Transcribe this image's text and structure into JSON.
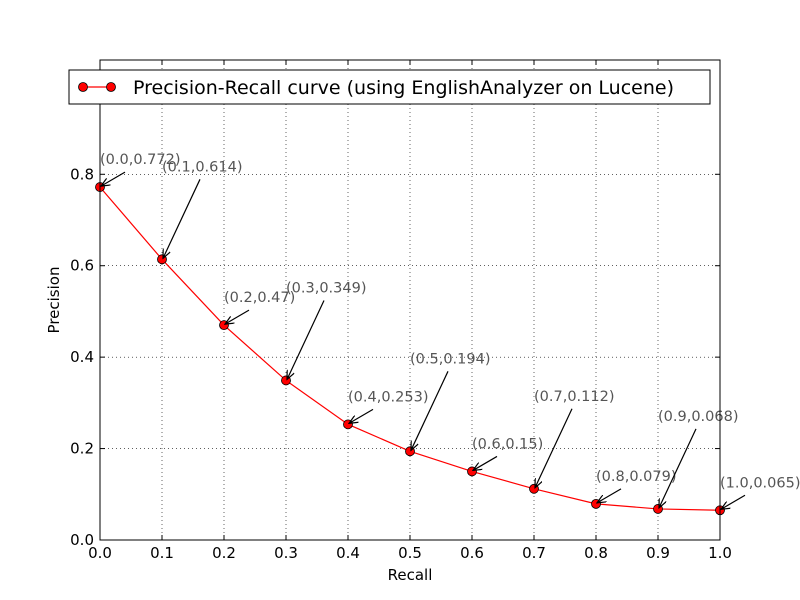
{
  "chart_data": {
    "type": "line",
    "xlabel": "Recall",
    "ylabel": "Precision",
    "xlim": [
      0.0,
      1.0
    ],
    "ylim": [
      0.0,
      1.05
    ],
    "x_ticks": [
      "0.0",
      "0.1",
      "0.2",
      "0.3",
      "0.4",
      "0.5",
      "0.6",
      "0.7",
      "0.8",
      "0.9",
      "1.0"
    ],
    "y_ticks": [
      "0.0",
      "0.2",
      "0.4",
      "0.6",
      "0.8"
    ],
    "grid": true,
    "legend_position": "top",
    "series": [
      {
        "name": "Precision-Recall curve (using EnglishAnalyzer on Lucene)",
        "color": "#ff0000",
        "marker_color": "#ff0000",
        "x": [
          0.0,
          0.1,
          0.2,
          0.3,
          0.4,
          0.5,
          0.6,
          0.7,
          0.8,
          0.9,
          1.0
        ],
        "y": [
          0.772,
          0.614,
          0.47,
          0.349,
          0.253,
          0.194,
          0.15,
          0.112,
          0.079,
          0.068,
          0.065
        ]
      }
    ],
    "annotations": [
      "(0.0,0.772)",
      "(0.1,0.614)",
      "(0.2,0.47)",
      "(0.3,0.349)",
      "(0.4,0.253)",
      "(0.5,0.194)",
      "(0.6,0.15)",
      "(0.7,0.112)",
      "(0.8,0.079)",
      "(0.9,0.068)",
      "(1.0,0.065)"
    ]
  }
}
